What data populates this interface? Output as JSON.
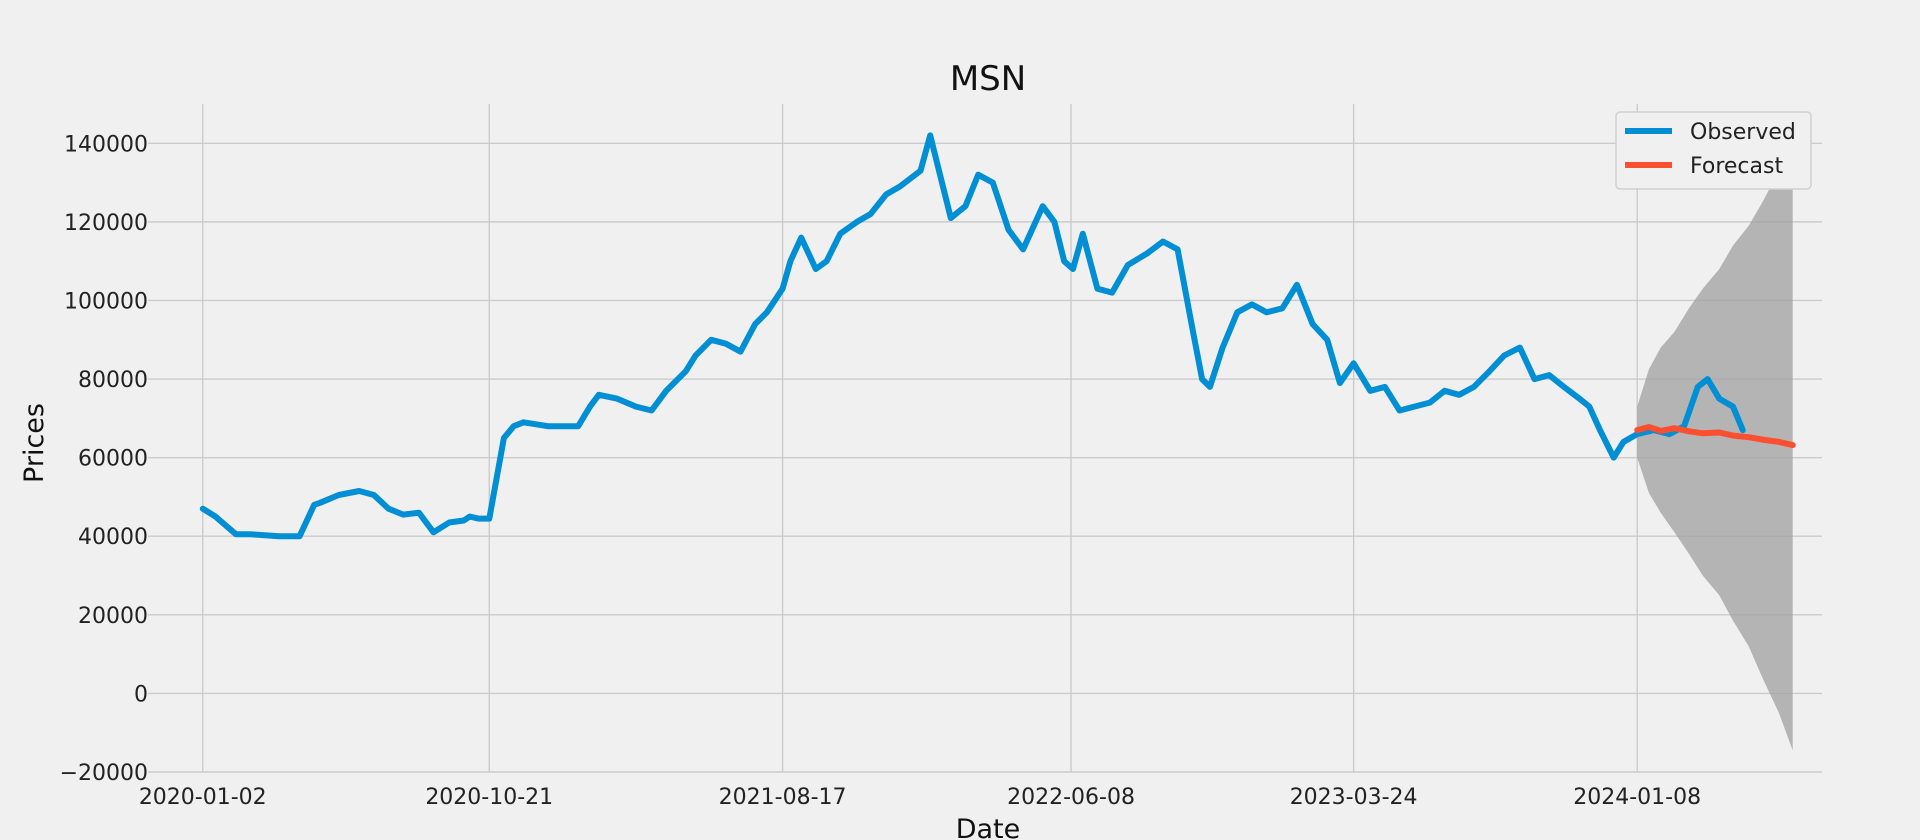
{
  "chart_data": {
    "type": "line",
    "title": "MSN",
    "xlabel": "Date",
    "ylabel": "Prices",
    "xlim": [
      "2019-11-07",
      "2024-07-15"
    ],
    "ylim": [
      -20000,
      150000
    ],
    "yticks": [
      -20000,
      0,
      20000,
      40000,
      60000,
      80000,
      100000,
      120000,
      140000
    ],
    "ytick_labels": [
      "−20000",
      "0",
      "20000",
      "40000",
      "60000",
      "80000",
      "100000",
      "120000",
      "140000"
    ],
    "xticks": [
      "2020-01-02",
      "2020-10-21",
      "2021-08-17",
      "2022-06-08",
      "2023-03-24",
      "2024-01-08"
    ],
    "grid": true,
    "legend": {
      "position": "top-right",
      "entries": [
        "Observed",
        "Forecast"
      ]
    },
    "colors": {
      "observed": "#008fd5",
      "forecast": "#fc4f30",
      "band": "#a0a0a0",
      "background": "#f0f0f0",
      "grid": "#cbcbcb"
    },
    "series": [
      {
        "name": "Observed",
        "x": [
          "2020-01-02",
          "2020-01-15",
          "2020-02-05",
          "2020-02-20",
          "2020-03-20",
          "2020-04-10",
          "2020-04-25",
          "2020-05-01",
          "2020-05-20",
          "2020-06-10",
          "2020-06-25",
          "2020-07-10",
          "2020-07-25",
          "2020-08-10",
          "2020-08-25",
          "2020-09-10",
          "2020-09-25",
          "2020-10-01",
          "2020-10-10",
          "2020-10-21",
          "2020-11-05",
          "2020-11-15",
          "2020-11-25",
          "2020-12-20",
          "2021-01-20",
          "2021-02-01",
          "2021-02-10",
          "2021-03-01",
          "2021-03-20",
          "2021-04-05",
          "2021-04-20",
          "2021-05-10",
          "2021-05-20",
          "2021-06-05",
          "2021-06-20",
          "2021-07-05",
          "2021-07-20",
          "2021-08-01",
          "2021-08-17",
          "2021-08-25",
          "2021-09-05",
          "2021-09-20",
          "2021-10-01",
          "2021-10-15",
          "2021-11-01",
          "2021-11-15",
          "2021-12-01",
          "2021-12-15",
          "2022-01-05",
          "2022-01-15",
          "2022-02-05",
          "2022-02-20",
          "2022-03-05",
          "2022-03-20",
          "2022-04-05",
          "2022-04-20",
          "2022-05-10",
          "2022-05-22",
          "2022-06-01",
          "2022-06-10",
          "2022-06-20",
          "2022-07-05",
          "2022-07-20",
          "2022-08-05",
          "2022-08-25",
          "2022-09-10",
          "2022-09-25",
          "2022-10-10",
          "2022-10-20",
          "2022-10-28",
          "2022-11-10",
          "2022-11-25",
          "2022-12-10",
          "2022-12-25",
          "2023-01-10",
          "2023-01-25",
          "2023-02-10",
          "2023-02-25",
          "2023-03-10",
          "2023-03-24",
          "2023-04-10",
          "2023-04-25",
          "2023-05-10",
          "2023-05-25",
          "2023-06-10",
          "2023-06-25",
          "2023-07-10",
          "2023-07-25",
          "2023-08-10",
          "2023-08-25",
          "2023-09-10",
          "2023-09-25",
          "2023-10-10",
          "2023-10-25",
          "2023-11-10",
          "2023-11-20",
          "2023-12-01",
          "2023-12-15",
          "2023-12-25",
          "2024-01-08",
          "2024-01-25",
          "2024-02-10",
          "2024-02-25",
          "2024-03-10",
          "2024-03-20",
          "2024-04-01",
          "2024-04-15",
          "2024-04-25"
        ],
        "values": [
          47000,
          45000,
          40500,
          40500,
          40000,
          40000,
          48000,
          48500,
          50500,
          51500,
          50500,
          47000,
          45500,
          46000,
          41000,
          43500,
          44000,
          45000,
          44500,
          44500,
          65000,
          68000,
          69000,
          68000,
          68000,
          73000,
          76000,
          75000,
          73000,
          72000,
          77000,
          82000,
          86000,
          90000,
          89000,
          87000,
          94000,
          97000,
          103000,
          110000,
          116000,
          108000,
          110000,
          117000,
          120000,
          122000,
          127000,
          129000,
          133000,
          142000,
          121000,
          124000,
          132000,
          130000,
          118000,
          113000,
          124000,
          120000,
          110000,
          108000,
          117000,
          103000,
          102000,
          109000,
          112000,
          115000,
          113000,
          93000,
          80000,
          78000,
          88000,
          97000,
          99000,
          97000,
          98000,
          104000,
          94000,
          90000,
          79000,
          84000,
          77000,
          78000,
          72000,
          73000,
          74000,
          77000,
          76000,
          78000,
          82000,
          86000,
          88000,
          80000,
          81000,
          78000,
          75000,
          73000,
          67000,
          60000,
          64000,
          66000,
          67000,
          66000,
          68000,
          78000,
          80000,
          75000,
          73000,
          67000
        ]
      },
      {
        "name": "Forecast",
        "x": [
          "2024-01-08",
          "2024-01-20",
          "2024-02-01",
          "2024-02-15",
          "2024-03-01",
          "2024-03-15",
          "2024-04-01",
          "2024-04-15",
          "2024-05-01",
          "2024-05-15",
          "2024-06-01",
          "2024-06-15"
        ],
        "values": [
          67000,
          67800,
          66800,
          67500,
          66700,
          66200,
          66400,
          65600,
          65200,
          64600,
          64000,
          63200
        ]
      }
    ],
    "confidence_band": {
      "x": [
        "2024-01-08",
        "2024-01-20",
        "2024-02-01",
        "2024-02-15",
        "2024-03-01",
        "2024-03-15",
        "2024-04-01",
        "2024-04-15",
        "2024-05-01",
        "2024-05-15",
        "2024-06-01",
        "2024-06-15"
      ],
      "lower": [
        60000,
        51000,
        46000,
        41000,
        35500,
        30000,
        25000,
        18500,
        12000,
        4000,
        -5000,
        -14500
      ],
      "upper": [
        73000,
        82500,
        88000,
        92000,
        98000,
        103000,
        108000,
        114000,
        119000,
        125000,
        133000,
        141000
      ]
    }
  }
}
